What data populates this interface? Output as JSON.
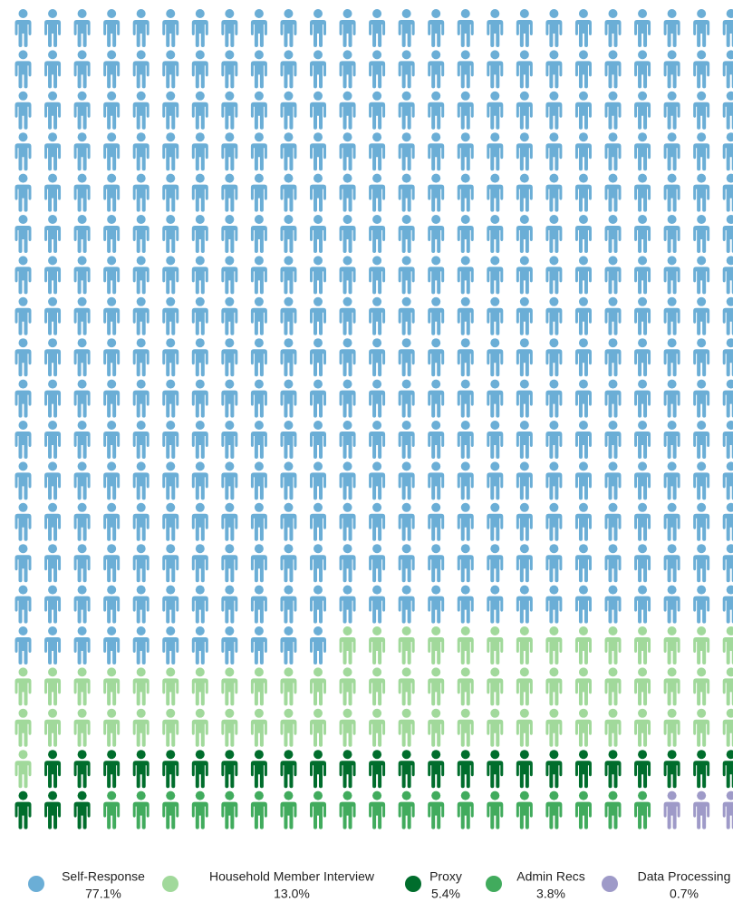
{
  "chart_data": {
    "type": "pictogram",
    "series": [
      {
        "name": "Self-Response",
        "color": "#6baed6",
        "value": 77.1,
        "value_label": "77.1%"
      },
      {
        "name": "Household Member Interview",
        "color": "#a1d99b",
        "value": 13.0,
        "value_label": "13.0%"
      },
      {
        "name": "Proxy",
        "color": "#006d2c",
        "value": 5.4,
        "value_label": "5.4%"
      },
      {
        "name": "Admin Recs",
        "color": "#41ab5d",
        "value": 3.8,
        "value_label": "3.8%"
      },
      {
        "name": "Data Processing",
        "color": "#9e9ac8",
        "value": 0.7,
        "value_label": "0.7%"
      }
    ]
  }
}
